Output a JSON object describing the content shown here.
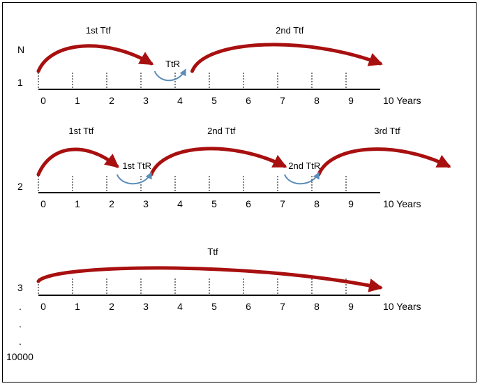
{
  "header_label": "N",
  "scale": {
    "numbers": [
      "0",
      "1",
      "2",
      "3",
      "4",
      "5",
      "6",
      "7",
      "8",
      "9"
    ],
    "end_label": "10 Years"
  },
  "colors": {
    "ttf_arrow": "#a81010",
    "ttr_arrow": "#5b8db8",
    "axis": "#000000"
  },
  "rows": [
    {
      "label": "1",
      "ttf_arrows": [
        {
          "label": "1st Ttf",
          "from": 0,
          "to": 3.3
        },
        {
          "label": "2nd Ttf",
          "from": 4.5,
          "to": 10
        }
      ],
      "ttr_arrows": [
        {
          "label": "TtR",
          "from": 3.4,
          "to": 4.3
        }
      ]
    },
    {
      "label": "2",
      "ttf_arrows": [
        {
          "label": "1st Ttf",
          "from": 0,
          "to": 2.3
        },
        {
          "label": "2nd Ttf",
          "from": 3.3,
          "to": 7.2
        },
        {
          "label": "3rd Ttf",
          "from": 8.2,
          "to": 12
        }
      ],
      "ttr_arrows": [
        {
          "label": "1st TtR",
          "from": 2.3,
          "to": 3.3
        },
        {
          "label": "2nd TtR",
          "from": 7.2,
          "to": 8.2
        }
      ]
    },
    {
      "label": "3",
      "ttf_arrows": [
        {
          "label": "Ttf",
          "from": 0,
          "to": 10
        }
      ],
      "ttr_arrows": []
    }
  ],
  "continuation": [
    ".",
    ".",
    "."
  ],
  "last_label": "10000"
}
